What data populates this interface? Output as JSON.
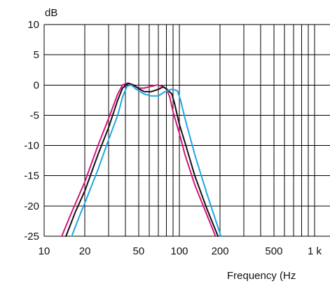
{
  "chart_data": {
    "type": "line",
    "title": "",
    "xlabel": "Frequency (Hz",
    "ylabel": "dB",
    "x_scale": "log",
    "xlim": [
      10,
      1300
    ],
    "ylim": [
      -25,
      10
    ],
    "grid": true,
    "legend": "none",
    "x_ticks": [
      {
        "value": 10,
        "label": "10"
      },
      {
        "value": 20,
        "label": "20"
      },
      {
        "value": 50,
        "label": "50"
      },
      {
        "value": 100,
        "label": "100"
      },
      {
        "value": 200,
        "label": "200"
      },
      {
        "value": 500,
        "label": "500"
      },
      {
        "value": 1000,
        "label": "1 k"
      }
    ],
    "x_grid_values": [
      20,
      30,
      40,
      50,
      60,
      70,
      80,
      90,
      100,
      200,
      300,
      400,
      500,
      600,
      700,
      800,
      900,
      1000
    ],
    "y_ticks": [
      {
        "value": 10,
        "label": "10"
      },
      {
        "value": 5,
        "label": "5"
      },
      {
        "value": 0,
        "label": "0"
      },
      {
        "value": -5,
        "label": "-5"
      },
      {
        "value": -10,
        "label": "-10"
      },
      {
        "value": -15,
        "label": "-15"
      },
      {
        "value": -20,
        "label": "-20"
      },
      {
        "value": -25,
        "label": "-25"
      }
    ],
    "series": [
      {
        "color": "#d6137c",
        "points": [
          [
            13.5,
            -25
          ],
          [
            16,
            -21
          ],
          [
            20,
            -16
          ],
          [
            25,
            -10
          ],
          [
            30,
            -5.5
          ],
          [
            35,
            -1.5
          ],
          [
            38,
            0
          ],
          [
            41,
            0.3
          ],
          [
            45,
            0
          ],
          [
            50,
            -0.5
          ],
          [
            55,
            -0.5
          ],
          [
            60,
            -0.3
          ],
          [
            68,
            0
          ],
          [
            75,
            -0.2
          ],
          [
            80,
            -0.6
          ],
          [
            85,
            -2
          ],
          [
            90,
            -4.5
          ],
          [
            100,
            -8
          ],
          [
            110,
            -11.5
          ],
          [
            130,
            -16.5
          ],
          [
            160,
            -21.5
          ],
          [
            185,
            -25
          ]
        ]
      },
      {
        "color": "#111111",
        "points": [
          [
            14.5,
            -25
          ],
          [
            17,
            -21
          ],
          [
            20,
            -17.5
          ],
          [
            25,
            -11.5
          ],
          [
            30,
            -7
          ],
          [
            35,
            -2.5
          ],
          [
            38,
            -0.5
          ],
          [
            42,
            0.3
          ],
          [
            46,
            0
          ],
          [
            50,
            -0.6
          ],
          [
            55,
            -1.1
          ],
          [
            62,
            -1.1
          ],
          [
            70,
            -0.7
          ],
          [
            76,
            -0.3
          ],
          [
            82,
            -0.8
          ],
          [
            88,
            -1.5
          ],
          [
            92,
            -3
          ],
          [
            100,
            -6.5
          ],
          [
            110,
            -9.5
          ],
          [
            130,
            -15
          ],
          [
            160,
            -20.5
          ],
          [
            193,
            -25
          ]
        ]
      },
      {
        "color": "#1ea7e6",
        "points": [
          [
            16,
            -25
          ],
          [
            18,
            -22
          ],
          [
            20,
            -19.5
          ],
          [
            25,
            -14
          ],
          [
            30,
            -9
          ],
          [
            35,
            -5
          ],
          [
            38,
            -2
          ],
          [
            41,
            -0.2
          ],
          [
            44,
            0
          ],
          [
            48,
            -0.7
          ],
          [
            55,
            -1.5
          ],
          [
            62,
            -1.8
          ],
          [
            70,
            -1.8
          ],
          [
            77,
            -1.2
          ],
          [
            82,
            -0.9
          ],
          [
            88,
            -0.7
          ],
          [
            93,
            -0.8
          ],
          [
            97,
            -1
          ],
          [
            102,
            -2.5
          ],
          [
            110,
            -5.5
          ],
          [
            130,
            -11.5
          ],
          [
            160,
            -18
          ],
          [
            203,
            -25
          ]
        ]
      }
    ]
  }
}
